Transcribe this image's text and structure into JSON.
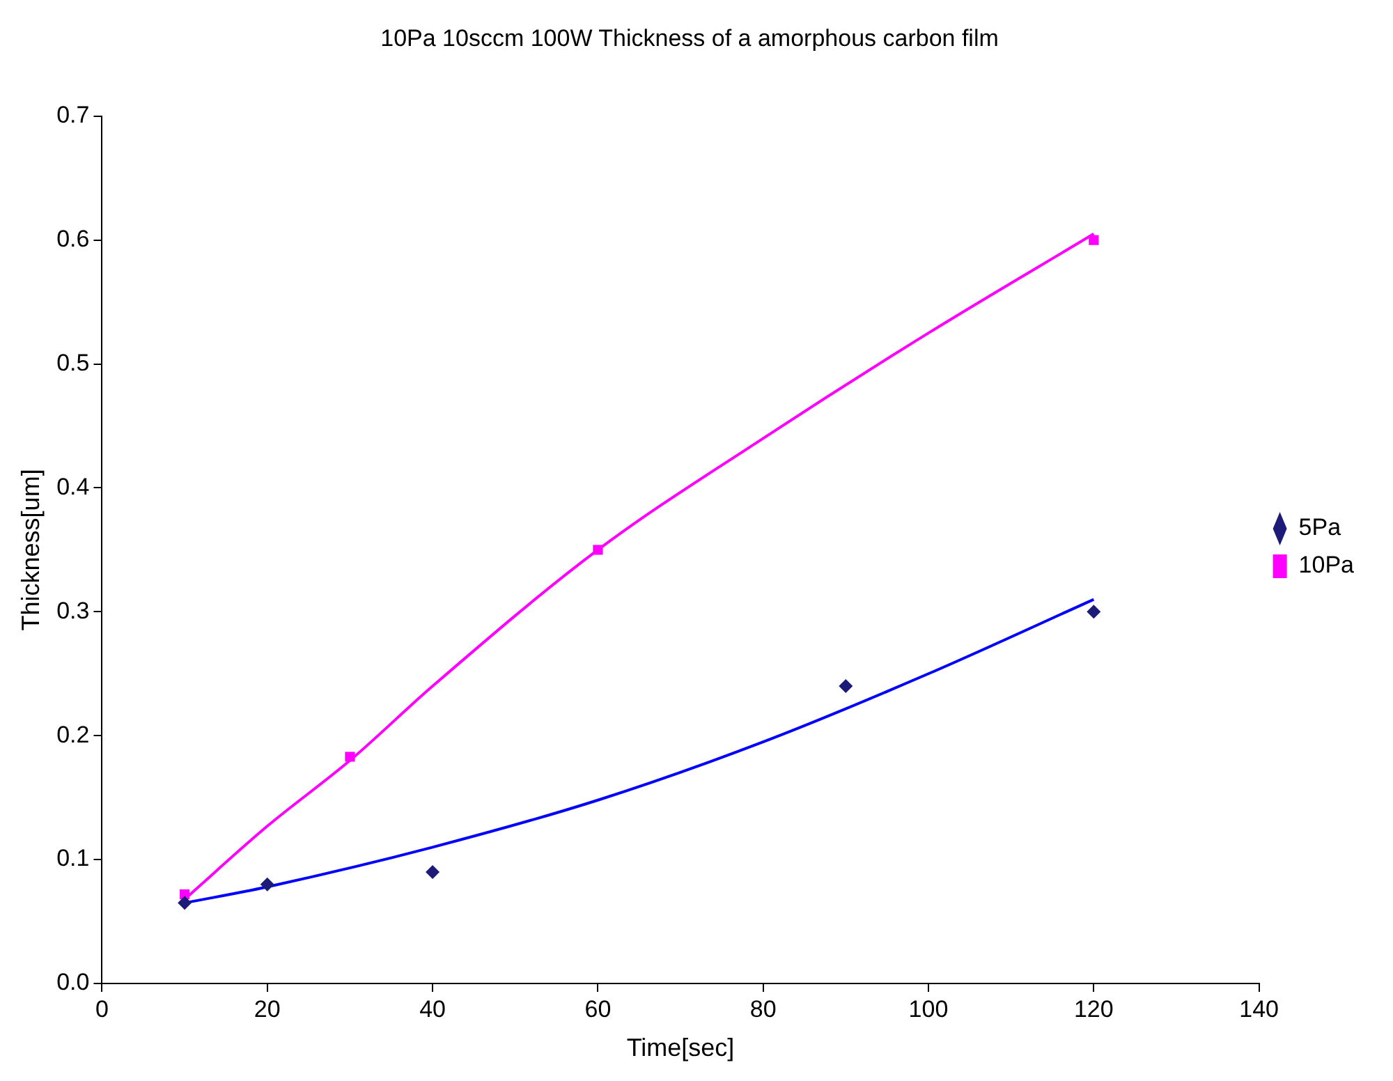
{
  "chart_data": {
    "type": "scatter",
    "title": "10Pa 10sccm 100W Thickness of a amorphous carbon film",
    "xlabel": "Time[sec]",
    "ylabel": "Thickness[um]",
    "xlim": [
      0,
      140
    ],
    "xticks": [
      0,
      20,
      40,
      60,
      80,
      100,
      120,
      140
    ],
    "ylim": [
      0,
      0.7
    ],
    "yticks": [
      {
        "value": 0,
        "label": "0.0"
      },
      0.1,
      0.2,
      0.3,
      0.4,
      0.5,
      0.6,
      0.7
    ],
    "grid": false,
    "legend": "right",
    "series": [
      {
        "name": "5Pa",
        "type": "scatter",
        "marker": "diamond",
        "color": "#1c1c78",
        "x": [
          10,
          20,
          40,
          90,
          120
        ],
        "values": [
          0.065,
          0.08,
          0.09,
          0.24,
          0.3
        ]
      },
      {
        "name": "10Pa",
        "type": "scatter",
        "marker": "square",
        "color": "#ff00ff",
        "x": [
          10,
          30,
          60,
          120
        ],
        "values": [
          0.072,
          0.183,
          0.35,
          0.6
        ]
      },
      {
        "type": "line",
        "marker": "none",
        "color": "#0000ff",
        "x": [
          10,
          20,
          40,
          60,
          80,
          100,
          120
        ],
        "values": [
          0.065,
          0.078,
          0.11,
          0.148,
          0.195,
          0.25,
          0.31
        ]
      },
      {
        "type": "line",
        "marker": "none",
        "color": "#ff00ff",
        "x": [
          10,
          20,
          30,
          40,
          60,
          80,
          100,
          120
        ],
        "values": [
          0.068,
          0.127,
          0.18,
          0.24,
          0.35,
          0.44,
          0.525,
          0.605
        ]
      }
    ]
  }
}
